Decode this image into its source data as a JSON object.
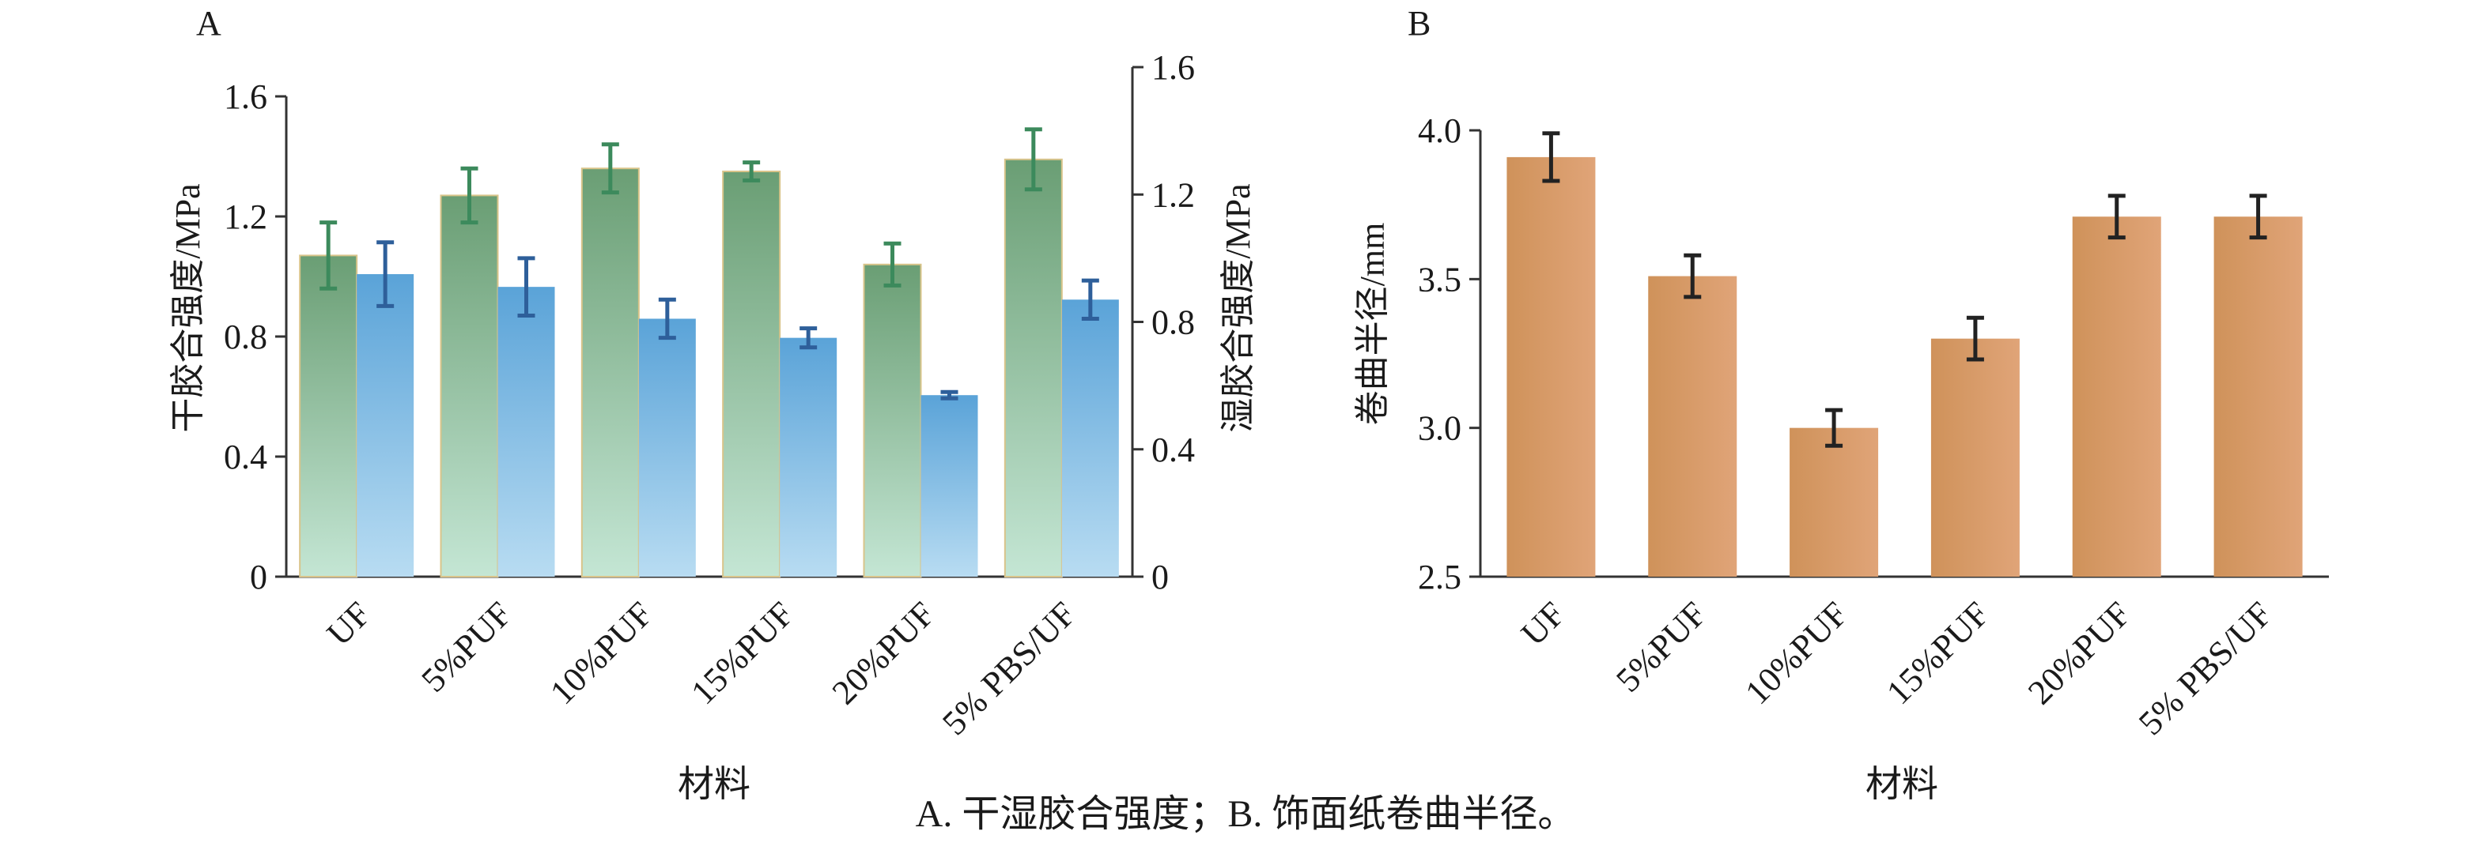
{
  "caption": "A. 干湿胶合强度；B. 饰面纸卷曲半径。",
  "colors": {
    "dry_top": "#6a9e74",
    "dry_bottom": "#c4e6d4",
    "wet_top": "#5aa3d8",
    "wet_bottom": "#b8dcf2",
    "dry_error": "#3c8a5c",
    "wet_error": "#2e5f9a",
    "b_top": "#cf925a",
    "b_bottom": "#e0a478",
    "b_error": "#222222"
  },
  "chart_data": [
    {
      "panel_label": "A",
      "type": "bar",
      "categories": [
        "UF",
        "5%PUF",
        "10%PUF",
        "15%PUF",
        "20%PUF",
        "5% PBS/UF"
      ],
      "xlabel": "材料",
      "ylabel": "干胶合强度/MPa",
      "ylabel_right": "湿胶合强度/MPa",
      "ylim": [
        0,
        1.6
      ],
      "yticks": [
        "0",
        "0.4",
        "0.8",
        "1.2",
        "1.6"
      ],
      "ylim_right": [
        0,
        1.6
      ],
      "yticks_right": [
        "0",
        "0.4",
        "0.8",
        "1.2",
        "1.6"
      ],
      "series": [
        {
          "key": "dry",
          "axis": "left",
          "values": [
            1.07,
            1.27,
            1.36,
            1.35,
            1.04,
            1.39
          ],
          "errors": [
            0.11,
            0.09,
            0.08,
            0.03,
            0.07,
            0.1
          ]
        },
        {
          "key": "wet",
          "axis": "right",
          "values": [
            0.95,
            0.91,
            0.81,
            0.75,
            0.57,
            0.87
          ],
          "errors": [
            0.1,
            0.09,
            0.06,
            0.03,
            0.01,
            0.06
          ]
        }
      ]
    },
    {
      "panel_label": "B",
      "type": "bar",
      "categories": [
        "UF",
        "5%PUF",
        "10%PUF",
        "15%PUF",
        "20%PUF",
        "5% PBS/UF"
      ],
      "xlabel": "材料",
      "ylabel": "卷曲半径/mm",
      "ylim": [
        2.5,
        4.0
      ],
      "yticks": [
        "2.5",
        "3.0",
        "3.5",
        "4.0"
      ],
      "series": [
        {
          "key": "radius",
          "values": [
            3.91,
            3.51,
            3.0,
            3.3,
            3.71,
            3.71
          ],
          "errors": [
            0.08,
            0.07,
            0.06,
            0.07,
            0.07,
            0.07
          ]
        }
      ]
    }
  ]
}
